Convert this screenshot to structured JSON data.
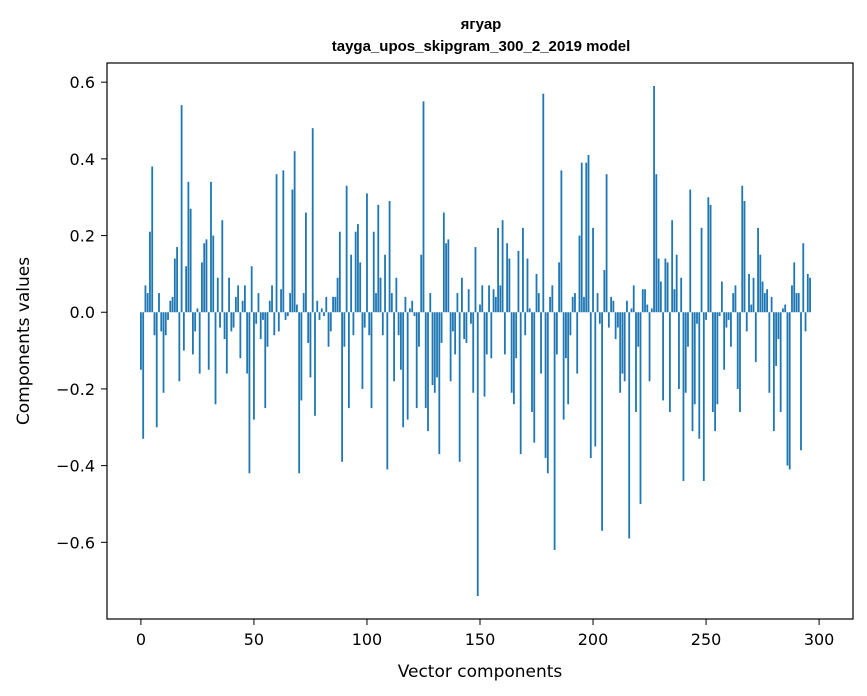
{
  "chart_data": {
    "type": "bar",
    "title": "ягуар",
    "subtitle": "tayga_upos_skipgram_300_2_2019 model",
    "xlabel": "Vector components",
    "ylabel": "Components values",
    "xlim": [
      -15,
      315
    ],
    "ylim": [
      -0.8,
      0.65
    ],
    "xticks": [
      0,
      50,
      100,
      150,
      200,
      250,
      300
    ],
    "yticks": [
      -0.6,
      -0.4,
      -0.2,
      0.0,
      0.2,
      0.4,
      0.6
    ],
    "ytick_labels": [
      "−0.6",
      "−0.4",
      "−0.2",
      "0.0",
      "0.2",
      "0.4",
      "0.6"
    ],
    "bar_color": "#1f77b4",
    "grid": false,
    "values": [
      -0.15,
      -0.33,
      0.07,
      0.05,
      0.21,
      0.38,
      -0.06,
      -0.3,
      0.05,
      -0.05,
      -0.21,
      -0.06,
      -0.02,
      0.03,
      0.04,
      0.14,
      0.17,
      -0.18,
      0.54,
      -0.1,
      0.12,
      0.34,
      0.27,
      -0.11,
      -0.05,
      0.01,
      -0.16,
      0.13,
      0.18,
      0.19,
      -0.15,
      0.34,
      0.2,
      -0.24,
      0.09,
      -0.04,
      0.24,
      -0.07,
      -0.16,
      0.09,
      -0.05,
      -0.04,
      0.04,
      0.07,
      -0.12,
      0.03,
      0.07,
      -0.16,
      -0.42,
      0.12,
      -0.28,
      -0.03,
      0.05,
      -0.07,
      -0.02,
      -0.25,
      -0.09,
      0.03,
      0.07,
      -0.06,
      0.36,
      -0.05,
      0.06,
      0.37,
      -0.02,
      -0.01,
      0.05,
      0.32,
      0.42,
      0.02,
      -0.42,
      -0.23,
      0.05,
      0.26,
      -0.08,
      -0.17,
      0.48,
      -0.27,
      0.03,
      -0.02,
      0.01,
      -0.01,
      0.04,
      -0.09,
      -0.05,
      0.04,
      0.04,
      0.09,
      0.21,
      -0.39,
      -0.09,
      0.33,
      -0.25,
      0.15,
      -0.06,
      0.21,
      0.23,
      0.13,
      -0.2,
      -0.04,
      0.31,
      -0.06,
      -0.25,
      0.21,
      0.05,
      0.28,
      0.09,
      -0.06,
      0.15,
      -0.41,
      0.29,
      0.05,
      -0.18,
      0.09,
      -0.06,
      -0.15,
      -0.3,
      0.04,
      -0.28,
      0.01,
      0.03,
      -0.01,
      -0.25,
      -0.09,
      0.15,
      0.55,
      -0.25,
      -0.31,
      0.05,
      -0.19,
      -0.21,
      -0.17,
      -0.37,
      -0.08,
      0.26,
      0.18,
      0.19,
      -0.18,
      -0.05,
      -0.11,
      0.05,
      -0.39,
      0.09,
      -0.07,
      -0.08,
      0.06,
      -0.03,
      -0.21,
      0.17,
      -0.74,
      0.02,
      0.07,
      -0.22,
      -0.11,
      0.07,
      -0.12,
      0.06,
      0.04,
      0.22,
      0.07,
      0.24,
      -0.11,
      0.18,
      0.14,
      -0.21,
      -0.24,
      -0.12,
      0.16,
      -0.37,
      0.22,
      -0.06,
      0.14,
      0.01,
      -0.26,
      -0.34,
      0.1,
      0.05,
      -0.16,
      0.57,
      -0.38,
      -0.42,
      0.04,
      0.07,
      -0.62,
      -0.11,
      0.13,
      0.37,
      -0.28,
      -0.12,
      -0.24,
      -0.06,
      0.04,
      0.05,
      -0.16,
      0.2,
      0.39,
      0.04,
      0.39,
      0.41,
      -0.38,
      0.22,
      -0.35,
      0.05,
      -0.03,
      -0.57,
      0.11,
      0.36,
      -0.04,
      0.04,
      0.03,
      -0.07,
      -0.04,
      -0.21,
      -0.16,
      -0.18,
      0.03,
      -0.59,
      0.01,
      0.07,
      -0.26,
      -0.09,
      -0.5,
      0.06,
      0.06,
      0.02,
      -0.18,
      0.01,
      0.59,
      0.36,
      0.14,
      0.08,
      -0.23,
      0.14,
      0.13,
      -0.26,
      0.24,
      0.06,
      0.15,
      -0.2,
      0.09,
      -0.44,
      -0.21,
      -0.09,
      0.32,
      -0.31,
      -0.24,
      -0.03,
      -0.33,
      0.22,
      -0.44,
      -0.02,
      0.3,
      0.28,
      -0.26,
      -0.31,
      -0.24,
      -0.01,
      0.08,
      -0.15,
      -0.04,
      -0.02,
      -0.09,
      0.05,
      0.07,
      -0.2,
      -0.26,
      0.33,
      0.29,
      -0.05,
      0.1,
      0.02,
      0.09,
      -0.13,
      0.22,
      0.15,
      0.08,
      0.05,
      0.06,
      -0.21,
      0.04,
      -0.31,
      -0.14,
      -0.07,
      -0.26,
      0.01,
      0.02,
      -0.4,
      -0.41,
      0.07,
      0.13,
      0.05,
      0.05,
      -0.36,
      0.18,
      -0.05,
      0.1,
      0.09
    ]
  }
}
